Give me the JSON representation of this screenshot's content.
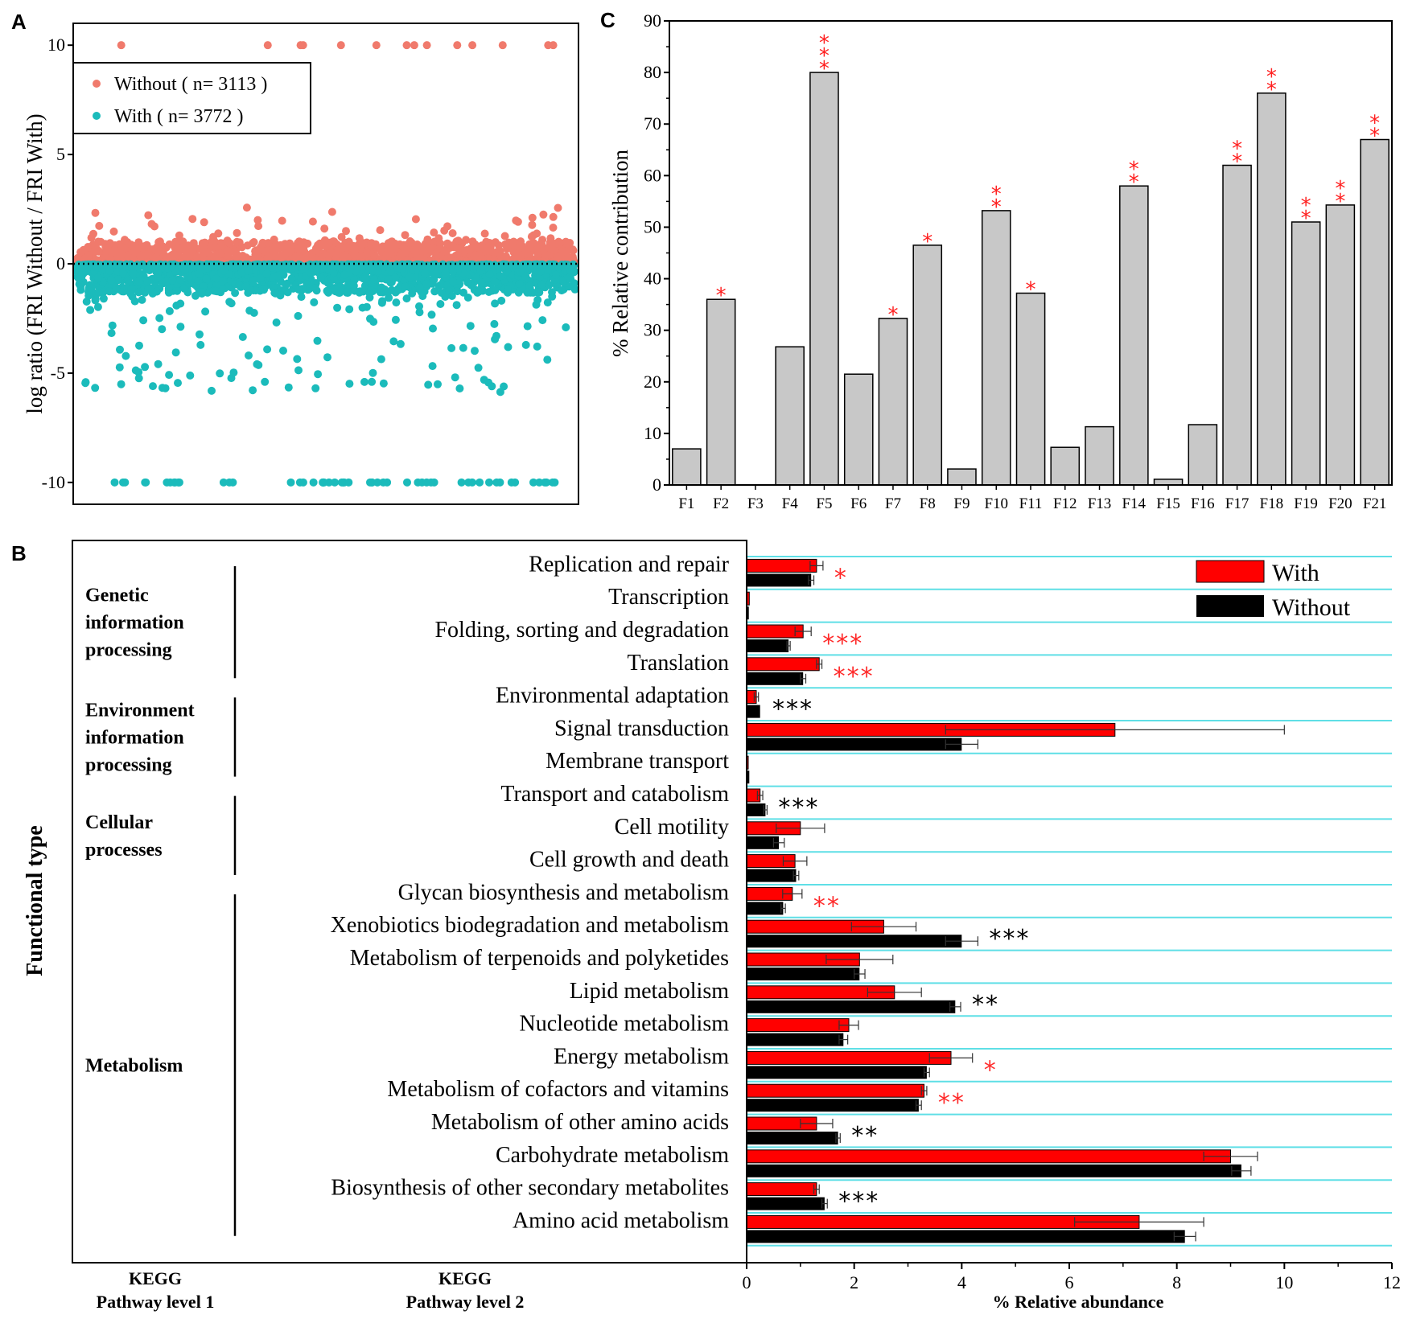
{
  "panels": {
    "a_label": "A",
    "b_label": "B",
    "c_label": "C"
  },
  "chart_data": [
    {
      "panel": "A",
      "type": "scatter",
      "ylabel": "log ratio (FRI Without / FRI With)",
      "ylim": [
        -11,
        11
      ],
      "yticks": [
        "-10",
        "-5",
        "0",
        "5",
        "10"
      ],
      "ytick_values": [
        -10,
        -5,
        0,
        5,
        10
      ],
      "reference_line": 0,
      "legend": [
        {
          "name": "Without ( n= 3113 )",
          "color": "#f07a6c"
        },
        {
          "name": "With ( n= 3772 )",
          "color": "#1bbbbb"
        }
      ],
      "series": [
        {
          "name": "Without",
          "n": 3113,
          "color": "#f07a6c",
          "range": [
            0,
            2.6
          ],
          "saturated_value": 10
        },
        {
          "name": "With",
          "n": 3772,
          "color": "#1bbbbb",
          "range": [
            -5.9,
            0
          ],
          "saturated_value": -10
        }
      ]
    },
    {
      "panel": "C",
      "type": "bar",
      "ylabel": "% Relative contribution",
      "ylim": [
        0,
        90
      ],
      "yticks": [
        "0",
        "10",
        "20",
        "30",
        "40",
        "50",
        "60",
        "70",
        "80",
        "90"
      ],
      "ytick_values": [
        0,
        10,
        20,
        30,
        40,
        50,
        60,
        70,
        80,
        90
      ],
      "categories": [
        "F1",
        "F2",
        "F3",
        "F4",
        "F5",
        "F6",
        "F7",
        "F8",
        "F9",
        "F10",
        "F11",
        "F12",
        "F13",
        "F14",
        "F15",
        "F16",
        "F17",
        "F18",
        "F19",
        "F20",
        "F21"
      ],
      "values": [
        7,
        36,
        0,
        26.8,
        80,
        21.5,
        32.3,
        46.5,
        3.1,
        53.2,
        37.2,
        7.3,
        11.3,
        58,
        1.1,
        11.7,
        62,
        76,
        51,
        54.3,
        67
      ],
      "significance": [
        "",
        "*",
        "",
        "",
        "***",
        "",
        "*",
        "*",
        "",
        "**",
        "*",
        "",
        "",
        "**",
        "",
        "",
        "**",
        "**",
        "**",
        "**",
        "**"
      ],
      "bar_color": "#c8c8c8",
      "star_color": "#ff2020"
    },
    {
      "panel": "B",
      "type": "bar",
      "orientation": "horizontal",
      "ylabel": "Functional type",
      "xlabel": "% Relative abundance",
      "xlim": [
        0,
        12
      ],
      "xticks": [
        "0",
        "2",
        "4",
        "6",
        "8",
        "10",
        "12"
      ],
      "xtick_values": [
        0,
        2,
        4,
        6,
        8,
        10,
        12
      ],
      "legend": [
        {
          "name": "With",
          "color": "#ff0000"
        },
        {
          "name": "Without",
          "color": "#000000"
        }
      ],
      "footer_level1": [
        "KEGG",
        "Pathway level 1"
      ],
      "footer_level2": [
        "KEGG",
        "Pathway level 2"
      ],
      "groups": [
        {
          "lines": [
            "Genetic",
            "information",
            "processing"
          ],
          "from": 0,
          "to": 3
        },
        {
          "lines": [
            "Environment",
            "information",
            "processing"
          ],
          "from": 4,
          "to": 6
        },
        {
          "lines": [
            "Cellular",
            "processes"
          ],
          "from": 7,
          "to": 9
        },
        {
          "lines": [
            "Metabolism"
          ],
          "from": 10,
          "to": 20
        }
      ],
      "categories": [
        "Replication and repair",
        "Transcription",
        "Folding, sorting and degradation",
        "Translation",
        "Environmental adaptation",
        "Signal transduction",
        "Membrane transport",
        "Transport and catabolism",
        "Cell motility",
        "Cell growth and death",
        "Glycan biosynthesis and metabolism",
        "Xenobiotics biodegradation and metabolism",
        "Metabolism of terpenoids and polyketides",
        "Lipid metabolism",
        "Nucleotide metabolism",
        "Energy metabolism",
        "Metabolism of cofactors and vitamins",
        "Metabolism of other amino acids",
        "Carbohydrate metabolism",
        "Biosynthesis of other secondary metabolites",
        "Amino acid metabolism"
      ],
      "series": [
        {
          "name": "With",
          "color": "#ff0000",
          "values": [
            1.3,
            0.05,
            1.05,
            1.35,
            0.18,
            6.85,
            0.03,
            0.25,
            1.0,
            0.9,
            0.85,
            2.55,
            2.1,
            2.75,
            1.9,
            3.8,
            3.3,
            1.3,
            9.0,
            1.3,
            7.3
          ],
          "errors": [
            0.12,
            0.01,
            0.15,
            0.05,
            0.04,
            3.15,
            0.01,
            0.05,
            0.45,
            0.22,
            0.18,
            0.6,
            0.62,
            0.5,
            0.18,
            0.4,
            0.05,
            0.3,
            0.5,
            0.05,
            1.2
          ]
        },
        {
          "name": "Without",
          "color": "#000000",
          "values": [
            1.2,
            0.04,
            0.78,
            1.05,
            0.25,
            4.0,
            0.05,
            0.35,
            0.6,
            0.92,
            0.68,
            4.0,
            2.1,
            3.88,
            1.8,
            3.35,
            3.2,
            1.7,
            9.2,
            1.45,
            8.15
          ],
          "errors": [
            0.05,
            0.01,
            0.03,
            0.05,
            0.02,
            0.3,
            0.01,
            0.03,
            0.1,
            0.05,
            0.04,
            0.3,
            0.1,
            0.1,
            0.08,
            0.05,
            0.05,
            0.04,
            0.18,
            0.05,
            0.2
          ]
        }
      ],
      "significance": [
        {
          "text": "*",
          "color": "red"
        },
        {
          "text": "",
          "color": "red"
        },
        {
          "text": "***",
          "color": "red"
        },
        {
          "text": "***",
          "color": "red"
        },
        {
          "text": "***",
          "color": "black"
        },
        {
          "text": "",
          "color": "black"
        },
        {
          "text": "",
          "color": "black"
        },
        {
          "text": "***",
          "color": "black"
        },
        {
          "text": "",
          "color": "black"
        },
        {
          "text": "",
          "color": "black"
        },
        {
          "text": "**",
          "color": "red"
        },
        {
          "text": "***",
          "color": "black"
        },
        {
          "text": "",
          "color": "black"
        },
        {
          "text": "**",
          "color": "black"
        },
        {
          "text": "",
          "color": "black"
        },
        {
          "text": "*",
          "color": "red"
        },
        {
          "text": "**",
          "color": "red"
        },
        {
          "text": "**",
          "color": "black"
        },
        {
          "text": "",
          "color": "black"
        },
        {
          "text": "***",
          "color": "black"
        },
        {
          "text": "",
          "color": "black"
        }
      ]
    }
  ]
}
